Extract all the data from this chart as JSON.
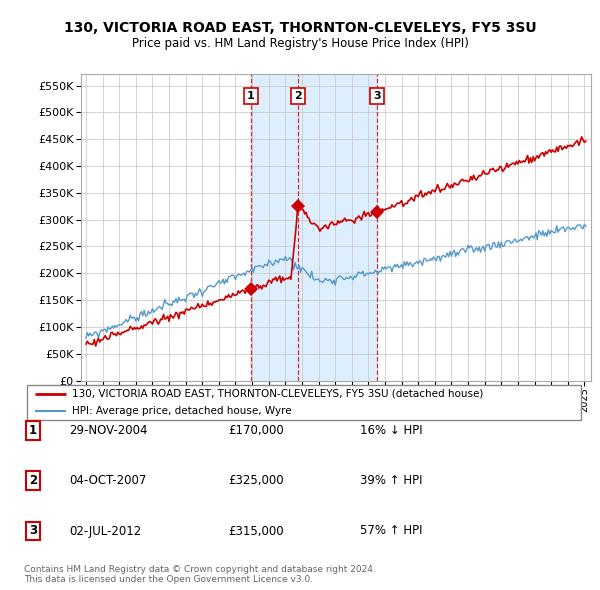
{
  "title": "130, VICTORIA ROAD EAST, THORNTON-CLEVELEYS, FY5 3SU",
  "subtitle": "Price paid vs. HM Land Registry's House Price Index (HPI)",
  "sale_prices": [
    170000,
    325000,
    315000
  ],
  "sale_labels": [
    "1",
    "2",
    "3"
  ],
  "sale_hpi_diff": [
    "16% ↓ HPI",
    "39% ↑ HPI",
    "57% ↑ HPI"
  ],
  "sale_date_str": [
    "29-NOV-2004",
    "04-OCT-2007",
    "02-JUL-2012"
  ],
  "sale_price_str": [
    "£170,000",
    "£325,000",
    "£315,000"
  ],
  "sale_year_floats": [
    2004.9167,
    2007.75,
    2012.5
  ],
  "legend_line1": "130, VICTORIA ROAD EAST, THORNTON-CLEVELEYS, FY5 3SU (detached house)",
  "legend_line2": "HPI: Average price, detached house, Wyre",
  "footer": "Contains HM Land Registry data © Crown copyright and database right 2024.\nThis data is licensed under the Open Government Licence v3.0.",
  "property_color": "#cc0000",
  "hpi_color": "#5599cc",
  "shade_color": "#ddeeff",
  "vline_color": "#cc0000",
  "yticks": [
    0,
    50000,
    100000,
    150000,
    200000,
    250000,
    300000,
    350000,
    400000,
    450000,
    500000,
    550000
  ],
  "background_color": "#ffffff",
  "grid_color": "#cccccc",
  "xlim": [
    1994.7,
    2025.4
  ],
  "ylim": [
    0,
    572000
  ]
}
